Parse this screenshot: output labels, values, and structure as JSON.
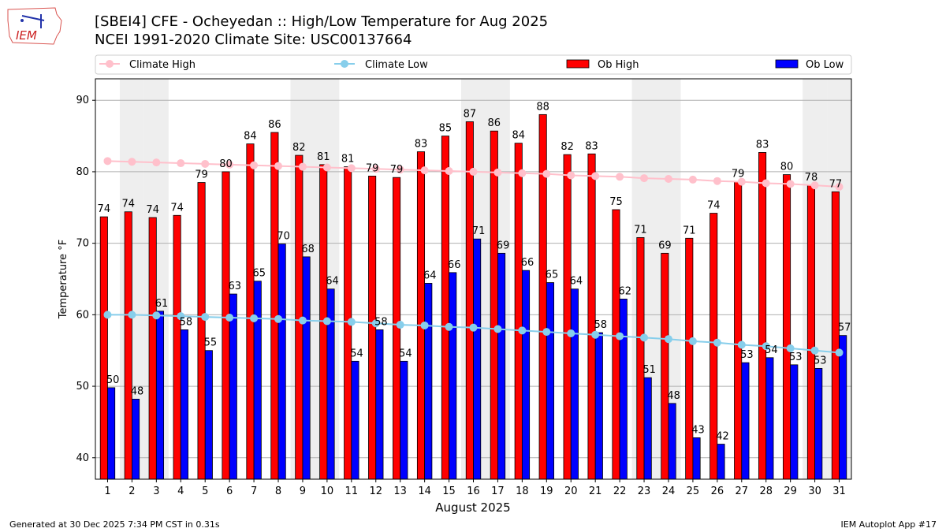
{
  "header": {
    "title_line1": "[SBEI4] CFE - Ocheyedan :: High/Low Temperature for Aug 2025",
    "title_line2": "NCEI 1991-2020 Climate Site: USC00137664",
    "logo_text": "IEM"
  },
  "footer": {
    "generated": "Generated at 30 Dec 2025 7:34 PM CST in 0.31s",
    "app": "IEM Autoplot App #17"
  },
  "colors": {
    "ob_high": "#ff0000",
    "ob_low": "#0000ff",
    "climate_high": "#ffc0cb",
    "climate_low": "#87ceeb",
    "weekend_shade": "#eeeeee",
    "grid": "#b0b0b0"
  },
  "chart_data": {
    "type": "bar",
    "title": "[SBEI4] CFE - Ocheyedan :: High/Low Temperature for Aug 2025",
    "subtitle": "NCEI 1991-2020 Climate Site: USC00137664",
    "xlabel": "August 2025",
    "ylabel": "Temperature °F",
    "ylim": [
      37,
      93
    ],
    "yticks": [
      40,
      50,
      60,
      70,
      80,
      90
    ],
    "grid": true,
    "legend_position": "top",
    "categories": [
      "1",
      "2",
      "3",
      "4",
      "5",
      "6",
      "7",
      "8",
      "9",
      "10",
      "11",
      "12",
      "13",
      "14",
      "15",
      "16",
      "17",
      "18",
      "19",
      "20",
      "21",
      "22",
      "23",
      "24",
      "25",
      "26",
      "27",
      "28",
      "29",
      "30",
      "31"
    ],
    "shaded_days": [
      2,
      3,
      9,
      10,
      16,
      17,
      23,
      24,
      30,
      31
    ],
    "series": [
      {
        "name": "Ob High",
        "kind": "bar",
        "values": [
          73.7,
          74.4,
          73.6,
          73.9,
          78.5,
          80.0,
          83.9,
          85.5,
          82.3,
          81.0,
          80.7,
          79.4,
          79.2,
          82.8,
          85.0,
          87.0,
          85.7,
          84.0,
          88.0,
          82.4,
          82.5,
          74.7,
          70.8,
          68.6,
          70.7,
          74.2,
          78.6,
          82.7,
          79.6,
          78.1,
          77.2
        ],
        "labels": [
          74,
          74,
          74,
          74,
          79,
          80,
          84,
          86,
          82,
          81,
          81,
          79,
          79,
          83,
          85,
          87,
          86,
          84,
          88,
          82,
          83,
          75,
          71,
          69,
          71,
          74,
          79,
          83,
          80,
          78,
          77
        ]
      },
      {
        "name": "Ob Low",
        "kind": "bar",
        "values": [
          49.8,
          48.2,
          60.5,
          57.9,
          55.0,
          62.9,
          64.7,
          69.9,
          68.1,
          63.6,
          53.5,
          57.9,
          53.5,
          64.4,
          65.9,
          70.6,
          68.6,
          66.2,
          64.5,
          63.6,
          57.5,
          62.2,
          51.2,
          47.6,
          42.8,
          41.9,
          53.3,
          54.0,
          53.0,
          52.5,
          57.1
        ],
        "labels": [
          50,
          48,
          61,
          58,
          55,
          63,
          65,
          70,
          68,
          64,
          54,
          58,
          54,
          64,
          66,
          71,
          69,
          66,
          65,
          64,
          58,
          62,
          51,
          48,
          43,
          42,
          53,
          54,
          53,
          53,
          57
        ]
      },
      {
        "name": "Climate High",
        "kind": "line",
        "values": [
          81.5,
          81.4,
          81.3,
          81.2,
          81.1,
          81.0,
          80.9,
          80.8,
          80.7,
          80.6,
          80.5,
          80.4,
          80.3,
          80.2,
          80.1,
          80.0,
          79.9,
          79.8,
          79.7,
          79.5,
          79.4,
          79.3,
          79.1,
          79.0,
          78.9,
          78.7,
          78.6,
          78.4,
          78.3,
          78.1,
          77.9
        ]
      },
      {
        "name": "Climate Low",
        "kind": "line",
        "values": [
          60.0,
          60.0,
          59.9,
          59.8,
          59.7,
          59.6,
          59.5,
          59.4,
          59.2,
          59.1,
          59.0,
          58.8,
          58.6,
          58.5,
          58.3,
          58.2,
          58.0,
          57.8,
          57.6,
          57.4,
          57.2,
          57.0,
          56.8,
          56.6,
          56.3,
          56.1,
          55.8,
          55.6,
          55.3,
          55.0,
          54.7
        ]
      }
    ],
    "legend": [
      "Climate High",
      "Climate Low",
      "Ob High",
      "Ob Low"
    ]
  }
}
